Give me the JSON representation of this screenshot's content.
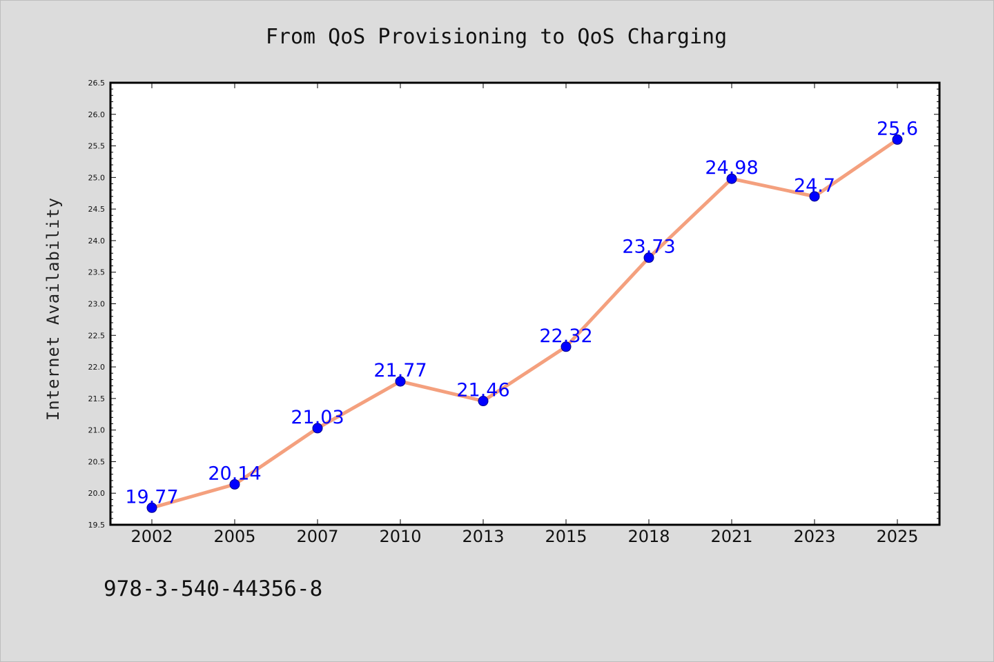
{
  "chart_data": {
    "type": "line",
    "title": "From QoS Provisioning to QoS Charging",
    "xlabel": "",
    "ylabel": "Internet Availability",
    "categories": [
      "2002",
      "2005",
      "2007",
      "2010",
      "2013",
      "2015",
      "2018",
      "2021",
      "2023",
      "2025"
    ],
    "values": [
      19.77,
      20.14,
      21.03,
      21.77,
      21.46,
      22.32,
      23.73,
      24.98,
      24.7,
      25.6
    ],
    "data_labels": [
      "19.77",
      "20.14",
      "21.03",
      "21.77",
      "21.46",
      "22.32",
      "23.73",
      "24.98",
      "24.7",
      "25.6"
    ],
    "ylim": [
      19.5,
      26.5
    ],
    "yticks": [
      "19.5",
      "20.0",
      "20.5",
      "21.0",
      "21.5",
      "22.0",
      "22.5",
      "23.0",
      "23.5",
      "24.0",
      "24.5",
      "25.0",
      "25.5",
      "26.0",
      "26.5"
    ],
    "grid": false,
    "line_color": "#f4a07e",
    "marker_color": "#0000ff",
    "label_color": "#0000ff",
    "background": "#dcdcdc",
    "plot_background": "#ffffff"
  },
  "footnote": "978-3-540-44356-8"
}
